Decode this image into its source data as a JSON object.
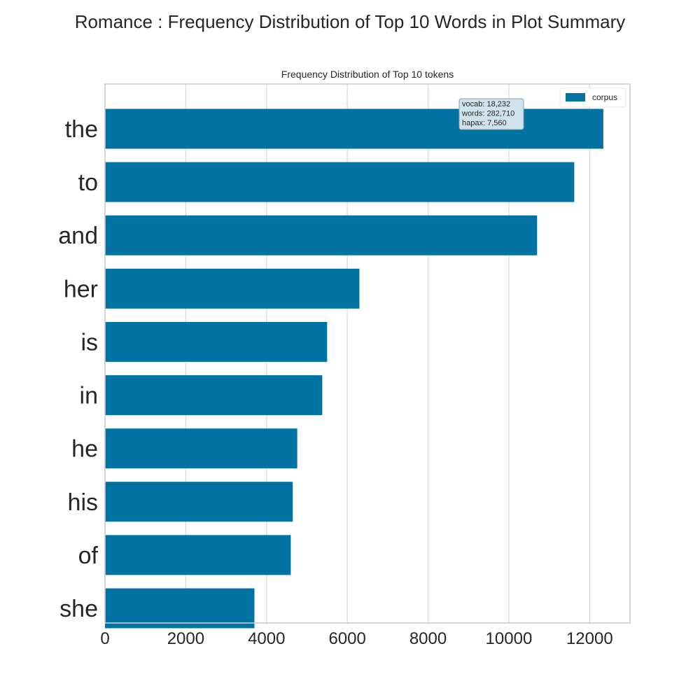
{
  "figure": {
    "suptitle": "Romance : Frequency Distribution of Top 10 Words in Plot Summary"
  },
  "colors": {
    "bar": "#0173a2",
    "grid": "#dcdcdc",
    "spine": "#cccccc",
    "text": "#262626",
    "stats_box_fill": "#cfe3ee",
    "stats_box_edge": "#9a9a9a"
  },
  "stats_box": {
    "lines": [
      "vocab: 18,232",
      "words: 282,710",
      "hapax: 7,560"
    ]
  },
  "chart_data": {
    "type": "bar",
    "orientation": "horizontal",
    "title": "Frequency Distribution of Top 10 tokens",
    "xlabel": "",
    "ylabel": "",
    "categories": [
      "the",
      "to",
      "and",
      "her",
      "is",
      "in",
      "he",
      "his",
      "of",
      "she"
    ],
    "series": [
      {
        "name": "corpus",
        "values": [
          12340,
          11620,
          10700,
          6300,
          5500,
          5380,
          4760,
          4650,
          4600,
          3700
        ]
      }
    ],
    "xlim": [
      0,
      13000
    ],
    "xticks": [
      0,
      2000,
      4000,
      6000,
      8000,
      10000,
      12000
    ],
    "grid": "vertical",
    "legend": "top-right"
  }
}
